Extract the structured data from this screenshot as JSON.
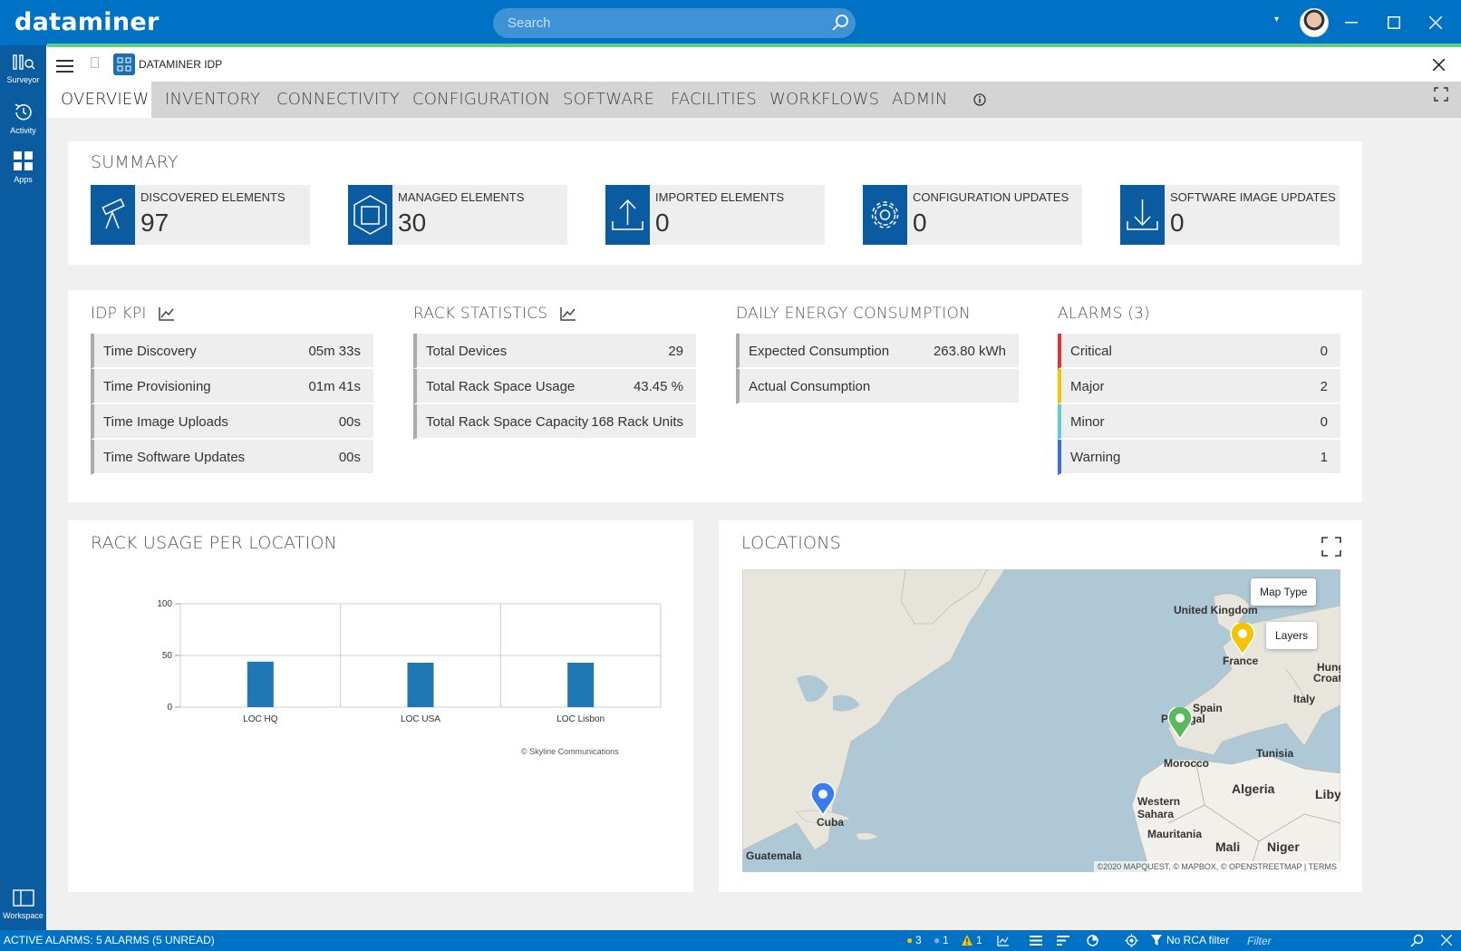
{
  "titlebar": {
    "logo": "dataminer",
    "search_placeholder": "Search"
  },
  "sidebar": {
    "items": [
      {
        "label": "Surveyor",
        "icon": "surveyor-icon"
      },
      {
        "label": "Activity",
        "icon": "activity-icon"
      },
      {
        "label": "Apps",
        "icon": "apps-icon"
      }
    ],
    "bottom": {
      "label": "Workspace",
      "icon": "workspace-icon"
    }
  },
  "app": {
    "title": "DATAMINER IDP"
  },
  "tabs": [
    {
      "label": "OVERVIEW",
      "active": true
    },
    {
      "label": "INVENTORY"
    },
    {
      "label": "CONNECTIVITY"
    },
    {
      "label": "CONFIGURATION"
    },
    {
      "label": "SOFTWARE"
    },
    {
      "label": "FACILITIES"
    },
    {
      "label": "WORKFLOWS"
    },
    {
      "label": "ADMIN"
    }
  ],
  "summary": {
    "title": "SUMMARY",
    "tiles": [
      {
        "label": "DISCOVERED ELEMENTS",
        "value": "97",
        "icon": "telescope-icon"
      },
      {
        "label": "MANAGED ELEMENTS",
        "value": "30",
        "icon": "cube-icon"
      },
      {
        "label": "IMPORTED ELEMENTS",
        "value": "0",
        "icon": "upload-icon"
      },
      {
        "label": "CONFIGURATION UPDATES",
        "value": "0",
        "icon": "gear-icon"
      },
      {
        "label": "SOFTWARE IMAGE UPDATES",
        "value": "0",
        "icon": "download-icon"
      }
    ]
  },
  "kpi": {
    "title": "IDP KPI",
    "rows": [
      {
        "key": "Time Discovery",
        "value": "05m 33s"
      },
      {
        "key": "Time Provisioning",
        "value": "01m 41s"
      },
      {
        "key": "Time Image Uploads",
        "value": "00s"
      },
      {
        "key": "Time Software Updates",
        "value": "00s"
      }
    ]
  },
  "rack": {
    "title": "RACK STATISTICS",
    "rows": [
      {
        "key": "Total Devices",
        "value": "29"
      },
      {
        "key": "Total Rack Space Usage",
        "value": "43.45 %"
      },
      {
        "key": "Total Rack Space Capacity",
        "value": "168 Rack Units"
      }
    ]
  },
  "energy": {
    "title": "DAILY ENERGY CONSUMPTION",
    "rows": [
      {
        "key": "Expected Consumption",
        "value": "263.80 kWh"
      },
      {
        "key": "Actual Consumption",
        "value": ""
      }
    ]
  },
  "alarms": {
    "title": "ALARMS (3)",
    "rows": [
      {
        "key": "Critical",
        "value": "0",
        "color": "#e8303a"
      },
      {
        "key": "Major",
        "value": "2",
        "color": "#f5c400"
      },
      {
        "key": "Minor",
        "value": "0",
        "color": "#5bcfd6"
      },
      {
        "key": "Warning",
        "value": "1",
        "color": "#3a6fe0"
      }
    ]
  },
  "rack_usage": {
    "title": "RACK USAGE PER LOCATION",
    "credit": "© Skyline Communications"
  },
  "chart_data": {
    "type": "bar",
    "categories": [
      "LOC HQ",
      "LOC USA",
      "LOC Lisbon"
    ],
    "values": [
      44,
      43,
      43
    ],
    "ylim": [
      0,
      100
    ],
    "yticks": [
      0,
      50,
      100
    ],
    "color": "#1f77b4",
    "grid": true
  },
  "locations": {
    "title": "LOCATIONS",
    "map_type_label": "Map Type",
    "layers_label": "Layers",
    "attribution": "©2020 MAPQUEST, © MAPBOX, © OPENSTREETMAP | TERMS",
    "places": [
      "United Kingdom",
      "France",
      "Spain",
      "Portugal",
      "Italy",
      "Morocco",
      "Tunisia",
      "Algeria",
      "Western Sahara",
      "Mauritania",
      "Mali",
      "Niger",
      "Cuba",
      "Guatemala",
      "Libya",
      "Hungary",
      "Croatia"
    ],
    "pins": [
      {
        "place": "France",
        "color": "#f5c400"
      },
      {
        "place": "Portugal",
        "color": "#5cb85c"
      },
      {
        "place": "Cuba",
        "color": "#3a7bf0"
      }
    ]
  },
  "statusbar": {
    "left": "ACTIVE ALARMS: 5 ALARMS (5 UNREAD)",
    "yellow_count": "3",
    "blue_count": "1",
    "warning_count": "1",
    "rca": "No RCA filter",
    "filter_placeholder": "Filter"
  }
}
